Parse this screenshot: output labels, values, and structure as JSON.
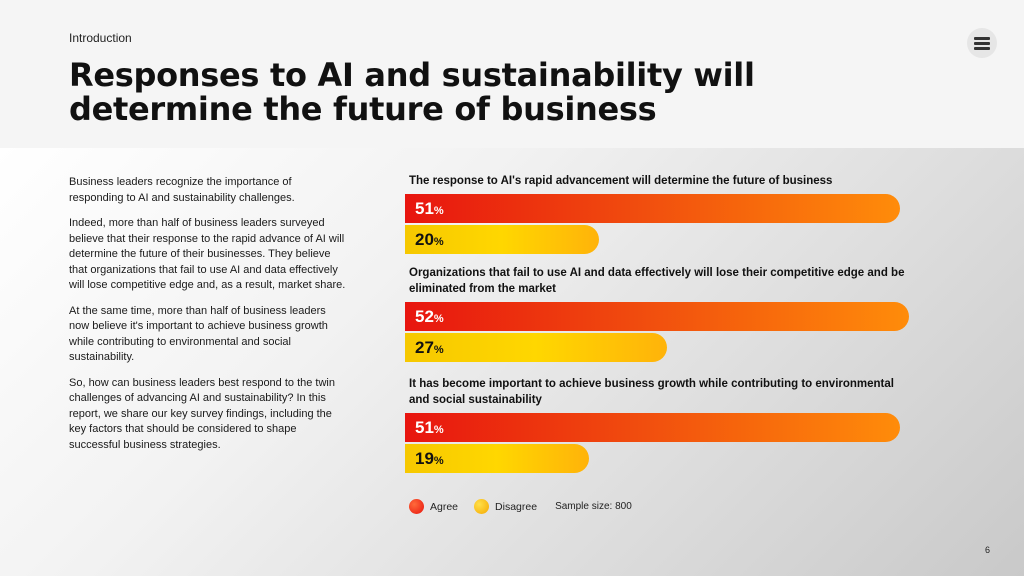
{
  "header": {
    "section": "Introduction",
    "title": "Responses to AI and sustainability will determine the future of business",
    "menu_icon": "hamburger-icon"
  },
  "body": {
    "paragraphs": [
      "Business leaders recognize the importance of responding to AI and sustainability challenges.",
      "Indeed, more than half of business leaders surveyed believe that their response to the rapid advance of AI will determine the future of their businesses. They believe that organizations that fail to use AI and data effectively will lose competitive edge and, as a result, market share.",
      "At the same time, more than half of business leaders now believe it's important to achieve business growth while contributing to environmental and social sustainability.",
      "So, how can business leaders best respond to the twin challenges of advancing AI and sustainability? In this report, we share our key survey findings, including the key factors that should be considered to shape successful business strategies."
    ]
  },
  "chart_data": {
    "type": "bar",
    "orientation": "horizontal",
    "unit": "%",
    "categories": [
      "The response to AI's rapid advancement will determine the future of business",
      "Organizations that fail to use AI and data effectively will lose their competitive edge and be eliminated from the market",
      "It has become important to achieve business growth while contributing to environmental and social sustainability"
    ],
    "series": [
      {
        "name": "Agree",
        "values": [
          51,
          52,
          51
        ],
        "color": "#e8150f"
      },
      {
        "name": "Disagree",
        "values": [
          20,
          27,
          19
        ],
        "color": "#ffd700"
      }
    ],
    "legend": [
      "Agree",
      "Disagree"
    ],
    "note": "Sample size: 800"
  },
  "footer": {
    "page_number": "6"
  }
}
